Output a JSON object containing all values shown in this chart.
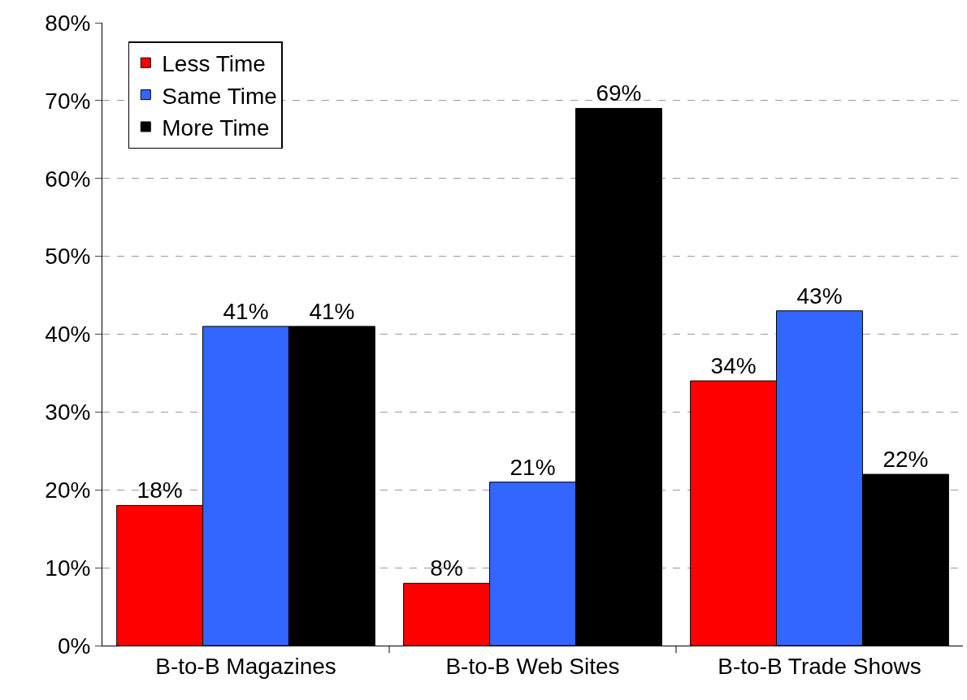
{
  "chart_data": {
    "type": "bar",
    "categories": [
      "B-to-B Magazines",
      "B-to-B Web Sites",
      "B-to-B Trade Shows"
    ],
    "series": [
      {
        "name": "Less Time",
        "color": "#ff0000",
        "values": [
          18,
          8,
          34
        ],
        "value_labels": [
          "18%",
          "8%",
          "34%"
        ]
      },
      {
        "name": "Same Time",
        "color": "#3366ff",
        "values": [
          41,
          21,
          43
        ],
        "value_labels": [
          "41%",
          "21%",
          "43%"
        ]
      },
      {
        "name": "More Time",
        "color": "#000000",
        "values": [
          41,
          69,
          22
        ],
        "value_labels": [
          "41%",
          "69%",
          "22%"
        ]
      }
    ],
    "ylim": [
      0,
      80
    ],
    "yticks": [
      {
        "value": 0,
        "label": "0%"
      },
      {
        "value": 10,
        "label": "10%"
      },
      {
        "value": 20,
        "label": "20%"
      },
      {
        "value": 30,
        "label": "30%"
      },
      {
        "value": 40,
        "label": "40%"
      },
      {
        "value": 50,
        "label": "50%"
      },
      {
        "value": 60,
        "label": "60%"
      },
      {
        "value": 70,
        "label": "70%"
      },
      {
        "value": 80,
        "label": "80%"
      }
    ],
    "grid": "y",
    "legend": "top left"
  }
}
